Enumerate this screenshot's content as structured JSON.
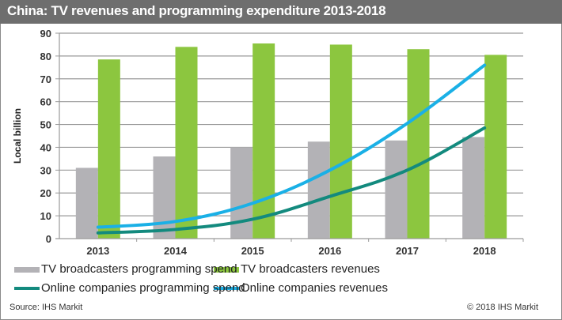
{
  "chart_data": {
    "type": "bar",
    "title": "China: TV revenues and programming expenditure 2013-2018",
    "xlabel": "",
    "ylabel": "Local billion",
    "ylim": [
      0,
      90
    ],
    "yticks": [
      0,
      10,
      20,
      30,
      40,
      50,
      60,
      70,
      80,
      90
    ],
    "grid": true,
    "categories": [
      "2013",
      "2014",
      "2015",
      "2016",
      "2017",
      "2018"
    ],
    "series": [
      {
        "name": "TV broadcasters programming spend",
        "type": "bar",
        "color": "#b3b2b6",
        "values": [
          31,
          36,
          40,
          42.5,
          43,
          44.5
        ]
      },
      {
        "name": "TV broadcasters revenues",
        "type": "bar",
        "color": "#8cc63f",
        "values": [
          78.5,
          84,
          85.5,
          85,
          83,
          80.5
        ]
      },
      {
        "name": "Online companies programming spend",
        "type": "line",
        "color": "#138a7e",
        "values": [
          2.5,
          4,
          8.5,
          18.5,
          30,
          48.5
        ]
      },
      {
        "name": "Online companies revenues",
        "type": "line",
        "color": "#1ab0e6",
        "values": [
          5,
          7.5,
          15.5,
          30,
          50.5,
          76
        ]
      }
    ],
    "legend_position": "bottom"
  },
  "footer": {
    "source": "Source: IHS Markit",
    "copyright": "© 2018 IHS Markit"
  }
}
